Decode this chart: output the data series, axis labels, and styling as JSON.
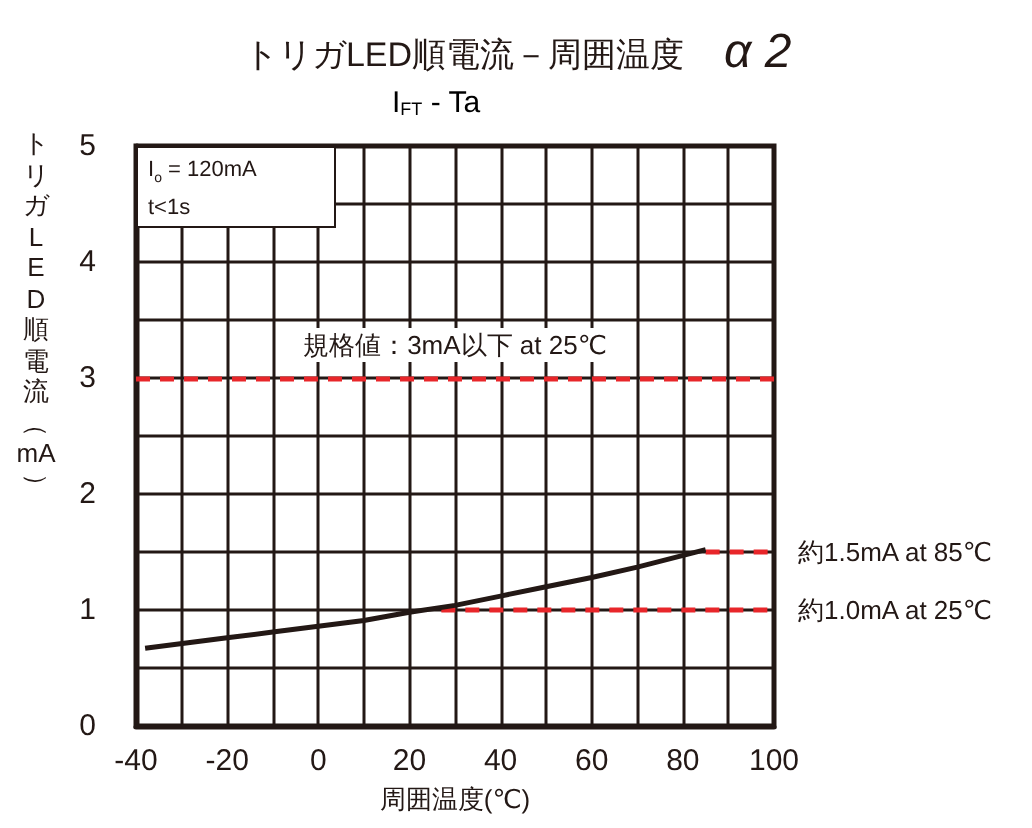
{
  "chart_data": {
    "type": "line",
    "title": "トリガLED順電流－周囲温度",
    "subtitle": "I$_{FT}$ - Ta",
    "xlabel": "周囲温度(℃)",
    "ylabel": "トリガLED順電流（mA）",
    "x": [
      -38,
      -20,
      -10,
      0,
      10,
      20,
      30,
      40,
      50,
      60,
      70,
      85
    ],
    "series": [
      {
        "color": "#231815",
        "values": [
          0.67,
          0.76,
          0.81,
          0.86,
          0.91,
          0.98,
          1.04,
          1.12,
          1.2,
          1.28,
          1.37,
          1.52
        ]
      },
      {
        "color": "#e8262a",
        "x": [
          27,
          100
        ],
        "values": [
          1,
          1
        ],
        "line_style": "dashed"
      },
      {
        "color": "#e8262a",
        "x": [
          85,
          100
        ],
        "values": [
          1.5,
          1.5
        ],
        "line_style": "dashed"
      }
    ],
    "xlim": [
      -40,
      100
    ],
    "xticks": [
      -40,
      {
        "value": -30,
        "label": null
      },
      -20,
      {
        "value": -10,
        "label": null
      },
      0,
      {
        "value": 10,
        "label": null
      },
      20,
      {
        "value": 30,
        "label": null
      },
      40,
      {
        "value": 50,
        "label": null
      },
      60,
      {
        "value": 70,
        "label": null
      },
      80,
      {
        "value": 90,
        "label": null
      },
      100
    ],
    "ylim": [
      0,
      5
    ],
    "yticks": [
      0,
      {
        "value": 0.5,
        "label": null
      },
      1,
      {
        "value": 1.5,
        "label": null
      },
      2,
      {
        "value": 2.5,
        "label": null
      },
      3,
      {
        "value": 3.5,
        "label": null
      },
      4,
      {
        "value": 4.5,
        "label": null
      },
      5
    ],
    "grid": true,
    "marker": "none",
    "line_style": "solid",
    "ref_lines": [
      {
        "axis": "y",
        "value": 3,
        "label": "規格値：3mA以下 at 25℃",
        "color": "#e8262a",
        "line_style": "dashed"
      }
    ],
    "annotations": [
      "α 2",
      "I$_{o}$ = 120mA\nt<1s",
      {
        "text": "約1.5mA at 85℃",
        "x": 100,
        "y": 1.5
      },
      {
        "text": "約1.0mA at 25℃",
        "x": 100,
        "y": 1
      }
    ]
  }
}
